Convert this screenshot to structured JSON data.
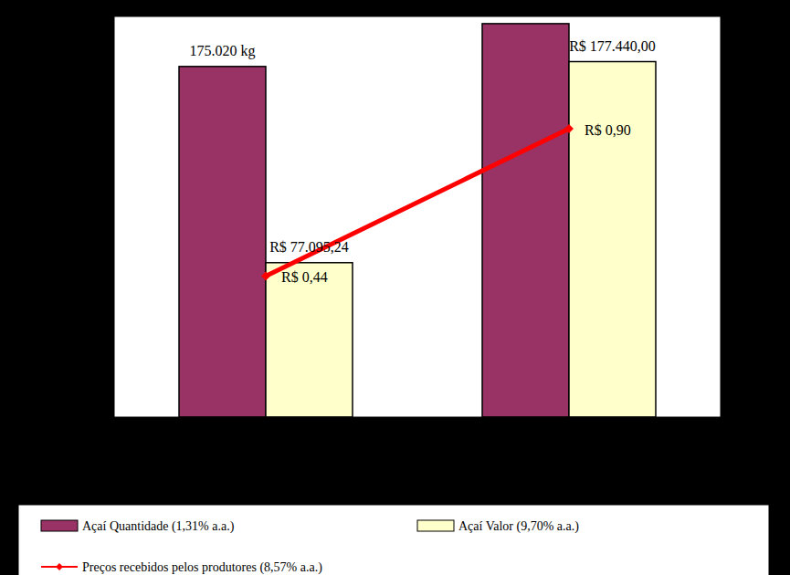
{
  "chart_data": {
    "type": "bar",
    "categories": [
      null,
      null
    ],
    "series": [
      {
        "name": "Açaí Quantidade (1,31% a.a.)",
        "type": "bar",
        "color": "#993366",
        "values": [
          175020,
          196400
        ],
        "value_labels": [
          "175.020 kg",
          null
        ]
      },
      {
        "name": "Açaí Valor (9,70% a.a.)",
        "type": "bar",
        "color": "#FFFFCC",
        "values": [
          77095.24,
          177440
        ],
        "value_labels": [
          "R$ 77.095,24",
          "R$ 177.440,00"
        ]
      },
      {
        "name": "Preços recebidos pelos produtores (8,57% a.a.)",
        "type": "line",
        "axis": "y2",
        "color": "#FF0000",
        "marker": "diamond",
        "values": [
          0.44,
          0.9
        ],
        "value_labels": [
          "R$ 0,44",
          "R$ 0,90"
        ]
      }
    ],
    "ylim": [
      0,
      200000
    ],
    "yticks": [
      0,
      20000,
      40000,
      60000,
      80000,
      100000,
      120000,
      140000,
      160000,
      180000,
      200000
    ],
    "y2lim": [
      0,
      1.25
    ],
    "y2ticks": [
      0,
      0.2,
      0.4,
      0.6,
      0.8,
      1,
      1.2
    ],
    "data_labels": true,
    "tick_labels": false,
    "legend": "bottom"
  }
}
